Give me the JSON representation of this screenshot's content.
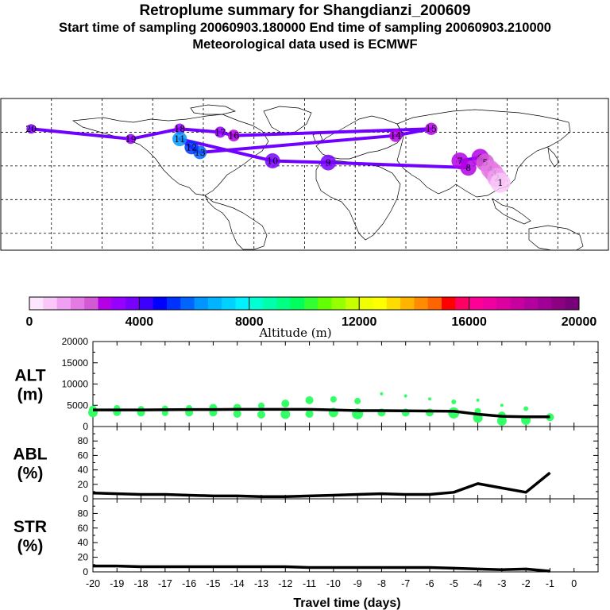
{
  "header": {
    "title": "Retroplume summary for Shangdianzi_200609",
    "sampling": "Start time of sampling 20060903.180000      End time of sampling 20060903.210000",
    "met": "Meteorological data used is ECMWF"
  },
  "colorbar": {
    "colors": [
      "#fde5fd",
      "#f9c8f9",
      "#f0a0f0",
      "#e47ae4",
      "#d45ad4",
      "#b400e6",
      "#9600ff",
      "#7800ff",
      "#3c00ff",
      "#0000ff",
      "#0032ff",
      "#0064ff",
      "#0096ff",
      "#00b4ff",
      "#00d2ff",
      "#00f0ff",
      "#00ffd2",
      "#00ffaa",
      "#00ff82",
      "#00ff5a",
      "#32ff32",
      "#64ff00",
      "#96ff00",
      "#c8ff00",
      "#f0ff00",
      "#ffff00",
      "#ffdc00",
      "#ffb400",
      "#ff8c00",
      "#ff6400",
      "#ff0000",
      "#ff0064",
      "#ff0096",
      "#f000a0",
      "#dc00a0",
      "#c800a0",
      "#b400a0",
      "#a00096",
      "#8c0082",
      "#780078"
    ],
    "tick_labels": [
      "0",
      "4000",
      "8000",
      "12000",
      "16000",
      "20000"
    ],
    "label": "Altitude (m)"
  },
  "map": {
    "clusters": [
      {
        "label": "20",
        "lon": -162,
        "lat": 72,
        "alt": 3500
      },
      {
        "label": "19",
        "lon": -103,
        "lat": 66,
        "alt": 3200
      },
      {
        "label": "18",
        "lon": -74,
        "lat": 72,
        "alt": 3400
      },
      {
        "label": "17",
        "lon": -50,
        "lat": 70,
        "alt": 3000
      },
      {
        "label": "16",
        "lon": -42,
        "lat": 68,
        "alt": 2600
      },
      {
        "label": "15",
        "lon": 75,
        "lat": 72,
        "alt": 2700
      },
      {
        "label": "14",
        "lon": 54,
        "lat": 68,
        "alt": 2600
      },
      {
        "label": "13",
        "lon": -62,
        "lat": 58,
        "alt": 5800
      },
      {
        "label": "12",
        "lon": -67,
        "lat": 61,
        "alt": 5300
      },
      {
        "label": "11",
        "lon": -74,
        "lat": 66,
        "alt": 6200
      },
      {
        "label": "10",
        "lon": -19,
        "lat": 53,
        "alt": 3700
      },
      {
        "label": "9",
        "lon": 14,
        "lat": 52,
        "alt": 3500
      },
      {
        "label": "8",
        "lon": 97,
        "lat": 49,
        "alt": 2500
      },
      {
        "label": "7",
        "lon": 92,
        "lat": 53,
        "alt": 2800
      },
      {
        "label": "6",
        "lon": 104,
        "lat": 55,
        "alt": 2600
      },
      {
        "label": "5",
        "lon": 107,
        "lat": 52,
        "alt": 2300
      },
      {
        "label": "4",
        "lon": 110,
        "lat": 48,
        "alt": 1800
      },
      {
        "label": "3",
        "lon": 112,
        "lat": 46,
        "alt": 1500
      },
      {
        "label": "2",
        "lon": 114,
        "lat": 43,
        "alt": 1200
      },
      {
        "label": "1",
        "lon": 116,
        "lat": 40,
        "alt": 800
      }
    ]
  },
  "chart_data": [
    {
      "type": "line",
      "panel": "ALT",
      "ylabel": "ALT\n(m)",
      "ylabel_line1": "ALT",
      "ylabel_line2": "(m)",
      "ylim": [
        0,
        20000
      ],
      "yticks": [
        "0",
        "5000",
        "10000",
        "15000",
        "20000"
      ],
      "x": [
        -20,
        -19,
        -18,
        -17,
        -16,
        -15,
        -14,
        -13,
        -12,
        -11,
        -10,
        -9,
        -8,
        -7,
        -6,
        -5,
        -4,
        -3,
        -2,
        -1
      ],
      "series": [
        {
          "name": "mean altitude",
          "values": [
            3900,
            3900,
            3900,
            3950,
            4000,
            4000,
            4050,
            4050,
            4050,
            4050,
            3900,
            3750,
            3750,
            3700,
            3650,
            3600,
            2900,
            2400,
            2300,
            2300
          ]
        }
      ],
      "scatter": [
        {
          "x": -20,
          "y": 3300,
          "r": 6
        },
        {
          "x": -20,
          "y": 4000,
          "r": 5
        },
        {
          "x": -19,
          "y": 3400,
          "r": 5
        },
        {
          "x": -19,
          "y": 4300,
          "r": 4
        },
        {
          "x": -18,
          "y": 3300,
          "r": 5
        },
        {
          "x": -18,
          "y": 4100,
          "r": 4
        },
        {
          "x": -17,
          "y": 3200,
          "r": 4
        },
        {
          "x": -17,
          "y": 4200,
          "r": 4
        },
        {
          "x": -16,
          "y": 3300,
          "r": 5
        },
        {
          "x": -16,
          "y": 4300,
          "r": 4
        },
        {
          "x": -15,
          "y": 3300,
          "r": 5
        },
        {
          "x": -15,
          "y": 4400,
          "r": 5
        },
        {
          "x": -14,
          "y": 3000,
          "r": 5
        },
        {
          "x": -14,
          "y": 4400,
          "r": 5
        },
        {
          "x": -13,
          "y": 2800,
          "r": 5
        },
        {
          "x": -13,
          "y": 4900,
          "r": 4
        },
        {
          "x": -12,
          "y": 2900,
          "r": 6
        },
        {
          "x": -12,
          "y": 5400,
          "r": 5
        },
        {
          "x": -11,
          "y": 3000,
          "r": 5
        },
        {
          "x": -11,
          "y": 6200,
          "r": 5
        },
        {
          "x": -10,
          "y": 3300,
          "r": 6
        },
        {
          "x": -10,
          "y": 6400,
          "r": 4
        },
        {
          "x": -9,
          "y": 3000,
          "r": 7
        },
        {
          "x": -9,
          "y": 6000,
          "r": 4
        },
        {
          "x": -8,
          "y": 3300,
          "r": 5
        },
        {
          "x": -8,
          "y": 7700,
          "r": 2
        },
        {
          "x": -7,
          "y": 3300,
          "r": 5
        },
        {
          "x": -7,
          "y": 7200,
          "r": 2
        },
        {
          "x": -6,
          "y": 3300,
          "r": 5
        },
        {
          "x": -6,
          "y": 6500,
          "r": 2
        },
        {
          "x": -5,
          "y": 3200,
          "r": 7
        },
        {
          "x": -5,
          "y": 5800,
          "r": 3
        },
        {
          "x": -4,
          "y": 2000,
          "r": 6
        },
        {
          "x": -4,
          "y": 3600,
          "r": 4
        },
        {
          "x": -4,
          "y": 6200,
          "r": 2
        },
        {
          "x": -3,
          "y": 1300,
          "r": 6
        },
        {
          "x": -3,
          "y": 2600,
          "r": 5
        },
        {
          "x": -3,
          "y": 5000,
          "r": 2
        },
        {
          "x": -2,
          "y": 1500,
          "r": 6
        },
        {
          "x": -2,
          "y": 4200,
          "r": 3
        },
        {
          "x": -1,
          "y": 2200,
          "r": 5
        }
      ]
    },
    {
      "type": "line",
      "panel": "ABL",
      "ylabel": "ABL\n(%)",
      "ylabel_line1": "ABL",
      "ylabel_line2": "(%)",
      "ylim": [
        0,
        100
      ],
      "yticks": [
        "0",
        "20",
        "40",
        "60",
        "80"
      ],
      "x": [
        -20,
        -19,
        -18,
        -17,
        -16,
        -15,
        -14,
        -13,
        -12,
        -11,
        -10,
        -9,
        -8,
        -7,
        -6,
        -5,
        -4,
        -3,
        -2,
        -1
      ],
      "series": [
        {
          "name": "ABL fraction",
          "values": [
            8,
            7,
            6,
            6,
            5,
            4,
            4,
            3,
            3,
            4,
            5,
            6,
            7,
            6,
            6,
            9,
            21,
            15,
            9,
            36
          ]
        }
      ]
    },
    {
      "type": "line",
      "panel": "STR",
      "ylabel": "STR\n(%)",
      "ylabel_line1": "STR",
      "ylabel_line2": "(%)",
      "ylim": [
        0,
        100
      ],
      "yticks": [
        "0",
        "20",
        "40",
        "60",
        "80"
      ],
      "x": [
        -20,
        -19,
        -18,
        -17,
        -16,
        -15,
        -14,
        -13,
        -12,
        -11,
        -10,
        -9,
        -8,
        -7,
        -6,
        -5,
        -4,
        -3,
        -2,
        -1
      ],
      "series": [
        {
          "name": "stratospheric fraction",
          "values": [
            8,
            8,
            7,
            7,
            7,
            7,
            7,
            7,
            7,
            6,
            6,
            6,
            6,
            6,
            6,
            5,
            4,
            3,
            4,
            1
          ]
        }
      ],
      "xlabel": "Travel time (days)",
      "xticks": [
        "-20",
        "-19",
        "-18",
        "-17",
        "-16",
        "-15",
        "-14",
        "-13",
        "-12",
        "-11",
        "-10",
        "-9",
        "-8",
        "-7",
        "-6",
        "-5",
        "-4",
        "-3",
        "-2",
        "-1",
        "0"
      ]
    }
  ]
}
